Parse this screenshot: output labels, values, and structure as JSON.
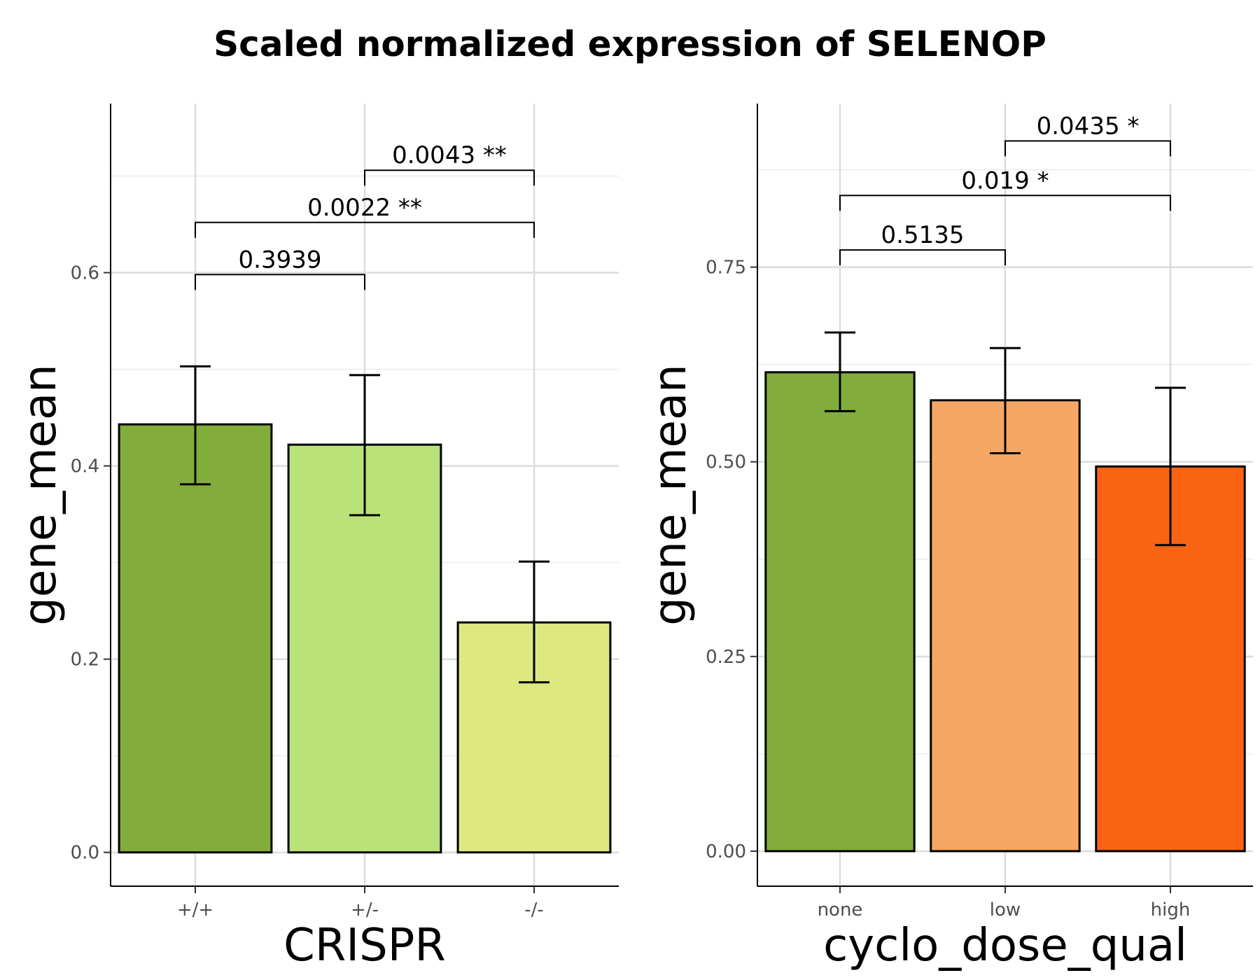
{
  "title": "Scaled normalized expression of SELENOP",
  "chart_data": [
    {
      "type": "bar",
      "xlabel": "CRISPR",
      "ylabel": "gene_mean",
      "ylim": [
        -0.035,
        0.775
      ],
      "y_ticks": [
        0.0,
        0.2,
        0.4,
        0.6
      ],
      "y_tick_labels": [
        "0.0",
        "0.2",
        "0.4",
        "0.6"
      ],
      "grid": true,
      "categories": [
        "+/+",
        "+/-",
        "-/-"
      ],
      "values": [
        0.443,
        0.422,
        0.238
      ],
      "errors_low": [
        0.381,
        0.349,
        0.176
      ],
      "errors_high": [
        0.503,
        0.494,
        0.301
      ],
      "colors": [
        "#82ac3c",
        "#b9e278",
        "#dde881"
      ],
      "comparisons": [
        {
          "from": 0,
          "to": 1,
          "y": 0.598,
          "label": "0.3939"
        },
        {
          "from": 0,
          "to": 2,
          "y": 0.652,
          "label": "0.0022 **"
        },
        {
          "from": 1,
          "to": 2,
          "y": 0.706,
          "label": "0.0043 **"
        }
      ]
    },
    {
      "type": "bar",
      "xlabel": "cyclo_dose_qual",
      "ylabel": "gene_mean",
      "ylim": [
        -0.045,
        0.96
      ],
      "y_ticks": [
        0.0,
        0.25,
        0.5,
        0.75
      ],
      "y_tick_labels": [
        "0.00",
        "0.25",
        "0.50",
        "0.75"
      ],
      "grid": true,
      "categories": [
        "none",
        "low",
        "high"
      ],
      "values": [
        0.615,
        0.579,
        0.494
      ],
      "errors_low": [
        0.565,
        0.511,
        0.393
      ],
      "errors_high": [
        0.666,
        0.646,
        0.595
      ],
      "colors": [
        "#82ac3c",
        "#f6a663",
        "#f86412"
      ],
      "comparisons": [
        {
          "from": 0,
          "to": 1,
          "y": 0.772,
          "label": "0.5135"
        },
        {
          "from": 0,
          "to": 2,
          "y": 0.842,
          "label": "0.019 *"
        },
        {
          "from": 1,
          "to": 2,
          "y": 0.912,
          "label": "0.0435 *"
        }
      ]
    }
  ]
}
